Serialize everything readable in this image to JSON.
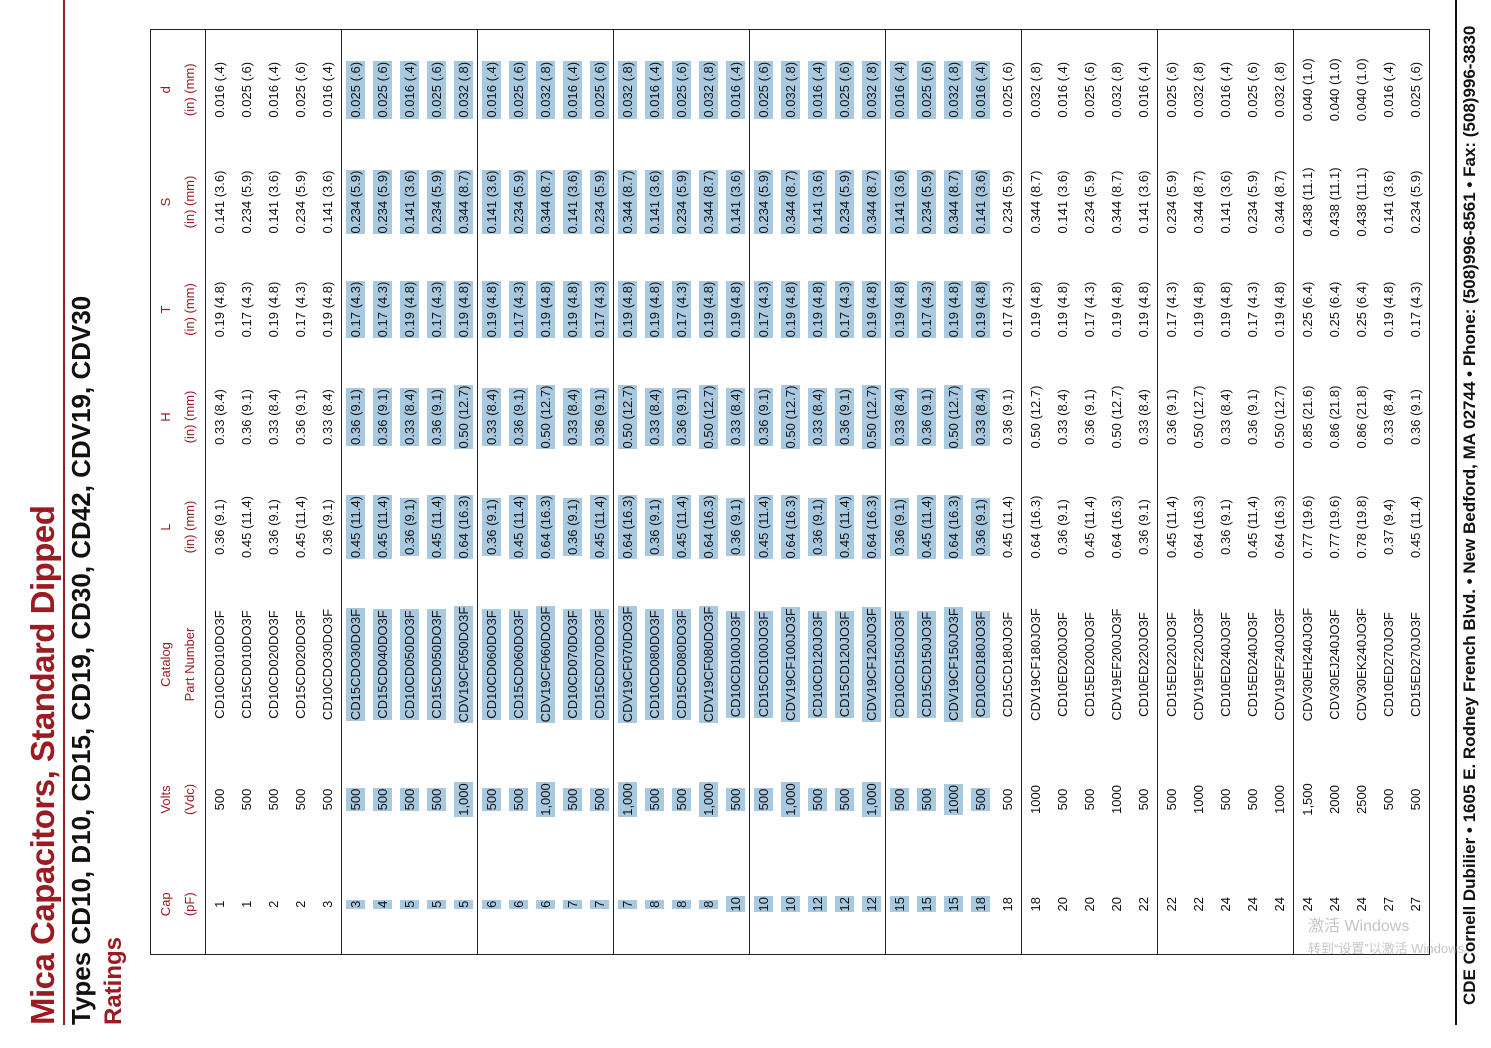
{
  "header": {
    "title": "Mica Capacitors, Standard Dipped",
    "subtitle": "Types CD10, D10, CD15, CD19, CD30, CD42, CDV19, CDV30",
    "section": "Ratings"
  },
  "table": {
    "columns": [
      {
        "label": "Cap",
        "unit": "(pF)"
      },
      {
        "label": "Volts",
        "unit": "(Vdc)"
      },
      {
        "label": "Catalog",
        "unit": "Part Number"
      },
      {
        "label": "L",
        "unit": "(in) (mm)"
      },
      {
        "label": "H",
        "unit": "(in) (mm)"
      },
      {
        "label": "T",
        "unit": "(in) (mm)"
      },
      {
        "label": "S",
        "unit": "(in) (mm)"
      },
      {
        "label": "d",
        "unit": "(in) (mm)"
      }
    ],
    "rows": [
      [
        "1",
        "500",
        "CD10CD010DO3F",
        "0.36 (9.1)",
        "0.33 (8.4)",
        "0.19 (4.8)",
        "0.141 (3.6)",
        "0.016 (.4)"
      ],
      [
        "1",
        "500",
        "CD15CD010DO3F",
        "0.45 (11.4)",
        "0.36 (9.1)",
        "0.17 (4.3)",
        "0.234 (5.9)",
        "0.025 (.6)"
      ],
      [
        "2",
        "500",
        "CD10CD020DO3F",
        "0.36 (9.1)",
        "0.33 (8.4)",
        "0.19 (4.8)",
        "0.141 (3.6)",
        "0.016 (.4)"
      ],
      [
        "2",
        "500",
        "CD15CD020DO3F",
        "0.45 (11.4)",
        "0.36 (9.1)",
        "0.17 (4.3)",
        "0.234 (5.9)",
        "0.025 (.6)"
      ],
      [
        "3",
        "500",
        "CD10CDO30DO3F",
        "0.36 (9.1)",
        "0.33 (8.4)",
        "0.19 (4.8)",
        "0.141 (3.6)",
        "0.016 (.4)"
      ],
      [
        "3",
        "500",
        "CD15CDO30DO3F",
        "0.45 (11.4)",
        "0.36 (9.1)",
        "0.17 (4.3)",
        "0.234 (5.9)",
        "0.025 (.6)"
      ],
      [
        "4",
        "500",
        "CD15CD040DO3F",
        "0.45 (11.4)",
        "0.36 (9.1)",
        "0.17 (4.3)",
        "0.234 (5.9)",
        "0.025 (.6)"
      ],
      [
        "5",
        "500",
        "CD10CD050DO3F",
        "0.36 (9.1)",
        "0.33 (8.4)",
        "0.19 (4.8)",
        "0.141 (3.6)",
        "0.016 (.4)"
      ],
      [
        "5",
        "500",
        "CD15CD050DO3F",
        "0.45 (11.4)",
        "0.36 (9.1)",
        "0.17 (4.3)",
        "0.234 (5.9)",
        "0.025 (.6)"
      ],
      [
        "5",
        "1,000",
        "CDV19CF050DO3F",
        "0.64 (16.3)",
        "0.50 (12.7)",
        "0.19 (4.8)",
        "0.344 (8.7)",
        "0.032 (.8)"
      ],
      [
        "6",
        "500",
        "CD10CD060DO3F",
        "0.36 (9.1)",
        "0.33 (8.4)",
        "0.19 (4.8)",
        "0.141 (3.6)",
        "0.016 (.4)"
      ],
      [
        "6",
        "500",
        "CD15CD060DO3F",
        "0.45 (11.4)",
        "0.36 (9.1)",
        "0.17 (4.3)",
        "0.234 (5.9)",
        "0.025 (.6)"
      ],
      [
        "6",
        "1,000",
        "CDV19CF060DO3F",
        "0.64 (16.3)",
        "0.50 (12.7)",
        "0.19 (4.8)",
        "0.344 (8.7)",
        "0.032 (.8)"
      ],
      [
        "7",
        "500",
        "CD10CD070DO3F",
        "0.36 (9.1)",
        "0.33 (8.4)",
        "0.19 (4.8)",
        "0.141 (3.6)",
        "0.016 (.4)"
      ],
      [
        "7",
        "500",
        "CD15CD070DO3F",
        "0.45 (11.4)",
        "0.36 (9.1)",
        "0.17 (4.3)",
        "0.234 (5.9)",
        "0.025 (.6)"
      ],
      [
        "7",
        "1,000",
        "CDV19CF070DO3F",
        "0.64 (16.3)",
        "0.50 (12.7)",
        "0.19 (4.8)",
        "0.344 (8.7)",
        "0.032 (.8)"
      ],
      [
        "8",
        "500",
        "CD10CD080DO3F",
        "0.36 (9.1)",
        "0.33 (8.4)",
        "0.19 (4.8)",
        "0.141 (3.6)",
        "0.016 (.4)"
      ],
      [
        "8",
        "500",
        "CD15CD080DO3F",
        "0.45 (11.4)",
        "0.36 (9.1)",
        "0.17 (4.3)",
        "0.234 (5.9)",
        "0.025 (.6)"
      ],
      [
        "8",
        "1,000",
        "CDV19CF080DO3F",
        "0.64 (16.3)",
        "0.50 (12.7)",
        "0.19 (4.8)",
        "0.344 (8.7)",
        "0.032 (.8)"
      ],
      [
        "10",
        "500",
        "CD10CD100JO3F",
        "0.36 (9.1)",
        "0.33 (8.4)",
        "0.19 (4.8)",
        "0.141 (3.6)",
        "0.016 (.4)"
      ],
      [
        "10",
        "500",
        "CD15CD100JO3F",
        "0.45 (11.4)",
        "0.36 (9.1)",
        "0.17 (4.3)",
        "0.234 (5.9)",
        "0.025 (.6)"
      ],
      [
        "10",
        "1,000",
        "CDV19CF100JO3F",
        "0.64 (16.3)",
        "0.50 (12.7)",
        "0.19 (4.8)",
        "0.344 (8.7)",
        "0.032 (.8)"
      ],
      [
        "12",
        "500",
        "CD10CD120JO3F",
        "0.36 (9.1)",
        "0.33 (8.4)",
        "0.19 (4.8)",
        "0.141 (3.6)",
        "0.016 (.4)"
      ],
      [
        "12",
        "500",
        "CD15CD120JO3F",
        "0.45 (11.4)",
        "0.36 (9.1)",
        "0.17 (4.3)",
        "0.234 (5.9)",
        "0.025 (.6)"
      ],
      [
        "12",
        "1,000",
        "CDV19CF120JO3F",
        "0.64 (16.3)",
        "0.50 (12.7)",
        "0.19 (4.8)",
        "0.344 (8.7)",
        "0.032 (.8)"
      ],
      [
        "15",
        "500",
        "CD10CD150JO3F",
        "0.36 (9.1)",
        "0.33 (8.4)",
        "0.19 (4.8)",
        "0.141 (3.6)",
        "0.016 (.4)"
      ],
      [
        "15",
        "500",
        "CD15CD150JO3F",
        "0.45 (11.4)",
        "0.36 (9.1)",
        "0.17 (4.3)",
        "0.234 (5.9)",
        "0.025 (.6)"
      ],
      [
        "15",
        "1000",
        "CDV19CF150JO3F",
        "0.64 (16.3)",
        "0.50 (12.7)",
        "0.19 (4.8)",
        "0.344 (8.7)",
        "0.032 (.8)"
      ],
      [
        "18",
        "500",
        "CD10CD180JO3F",
        "0.36 (9.1)",
        "0.33 (8.4)",
        "0.19 (4.8)",
        "0.141 (3.6)",
        "0.016 (.4)"
      ],
      [
        "18",
        "500",
        "CD15CD180JO3F",
        "0.45 (11.4)",
        "0.36 (9.1)",
        "0.17 (4.3)",
        "0.234 (5.9)",
        "0.025 (.6)"
      ],
      [
        "18",
        "1000",
        "CDV19CF180JO3F",
        "0.64 (16.3)",
        "0.50 (12.7)",
        "0.19 (4.8)",
        "0.344 (8.7)",
        "0.032 (.8)"
      ],
      [
        "20",
        "500",
        "CD10ED200JO3F",
        "0.36 (9.1)",
        "0.33 (8.4)",
        "0.19 (4.8)",
        "0.141 (3.6)",
        "0.016 (.4)"
      ],
      [
        "20",
        "500",
        "CD15ED200JO3F",
        "0.45 (11.4)",
        "0.36 (9.1)",
        "0.17 (4.3)",
        "0.234 (5.9)",
        "0.025 (.6)"
      ],
      [
        "20",
        "1000",
        "CDV19EF200JO3F",
        "0.64 (16.3)",
        "0.50 (12.7)",
        "0.19 (4.8)",
        "0.344 (8.7)",
        "0.032 (.8)"
      ],
      [
        "22",
        "500",
        "CD10ED220JO3F",
        "0.36 (9.1)",
        "0.33 (8.4)",
        "0.19 (4.8)",
        "0.141 (3.6)",
        "0.016 (.4)"
      ],
      [
        "22",
        "500",
        "CD15ED220JO3F",
        "0.45 (11.4)",
        "0.36 (9.1)",
        "0.17 (4.3)",
        "0.234 (5.9)",
        "0.025 (.6)"
      ],
      [
        "22",
        "1000",
        "CDV19EF220JO3F",
        "0.64 (16.3)",
        "0.50 (12.7)",
        "0.19 (4.8)",
        "0.344 (8.7)",
        "0.032 (.8)"
      ],
      [
        "24",
        "500",
        "CD10ED240JO3F",
        "0.36 (9.1)",
        "0.33 (8.4)",
        "0.19 (4.8)",
        "0.141 (3.6)",
        "0.016 (.4)"
      ],
      [
        "24",
        "500",
        "CD15ED240JO3F",
        "0.45 (11.4)",
        "0.36 (9.1)",
        "0.17 (4.3)",
        "0.234 (5.9)",
        "0.025 (.6)"
      ],
      [
        "24",
        "1000",
        "CDV19EF240JO3F",
        "0.64 (16.3)",
        "0.50 (12.7)",
        "0.19 (4.8)",
        "0.344 (8.7)",
        "0.032 (.8)"
      ],
      [
        "24",
        "1,500",
        "CDV30EH240JO3F",
        "0.77 (19.6)",
        "0.85 (21.6)",
        "0.25 (6.4)",
        "0.438 (11.1)",
        "0.040 (1.0)"
      ],
      [
        "24",
        "2000",
        "CDV30EJ240JO3F",
        "0.77 (19.6)",
        "0.86 (21.8)",
        "0.25 (6.4)",
        "0.438 (11.1)",
        "0.040 (1.0)"
      ],
      [
        "24",
        "2500",
        "CDV30EK240JO3F",
        "0.78 (19.8)",
        "0.86 (21.8)",
        "0.25 (6.4)",
        "0.438 (11.1)",
        "0.040 (1.0)"
      ],
      [
        "27",
        "500",
        "CD10ED270JO3F",
        "0.37 (9.4)",
        "0.33 (8.4)",
        "0.19 (4.8)",
        "0.141 (3.6)",
        "0.016 (.4)"
      ],
      [
        "27",
        "500",
        "CD15ED270JO3F",
        "0.45 (11.4)",
        "0.36 (9.1)",
        "0.17 (4.3)",
        "0.234 (5.9)",
        "0.025 (.6)"
      ]
    ]
  },
  "footer": "CDE Cornell Dubilier • 1605 E. Rodney French Blvd. • New Bedford, MA 02744 • Phone: (508)996-8561 • Fax: (508)996-3830",
  "watermark": [
    "激活 Windows",
    "转到“设置”以激活 Windows。"
  ]
}
